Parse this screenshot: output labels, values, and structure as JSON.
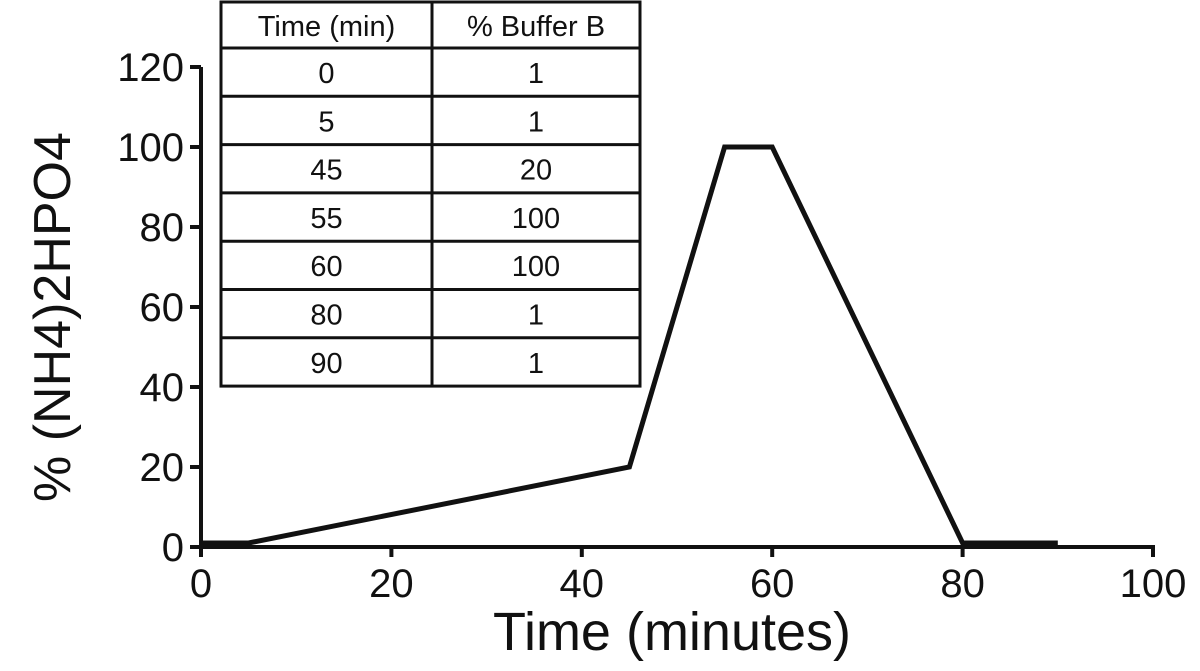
{
  "chart_data": {
    "type": "line",
    "title": "",
    "xlabel": "Time (minutes)",
    "ylabel": "% (NH4)2HPO4",
    "xlim": [
      0,
      100
    ],
    "ylim": [
      0,
      120
    ],
    "x_ticks": [
      "0",
      "20",
      "40",
      "60",
      "80",
      "100"
    ],
    "y_ticks": [
      "0",
      "20",
      "40",
      "60",
      "80",
      "100",
      "120"
    ],
    "grid": false,
    "series": [
      {
        "x": [
          0,
          5,
          45,
          55,
          60,
          80,
          90
        ],
        "y": [
          1,
          1,
          20,
          100,
          100,
          1,
          1
        ]
      }
    ],
    "table": {
      "headers": [
        "Time (min)",
        "% Buffer B"
      ],
      "rows": [
        [
          "0",
          "1"
        ],
        [
          "5",
          "1"
        ],
        [
          "45",
          "20"
        ],
        [
          "55",
          "100"
        ],
        [
          "60",
          "100"
        ],
        [
          "80",
          "1"
        ],
        [
          "90",
          "1"
        ]
      ]
    }
  }
}
